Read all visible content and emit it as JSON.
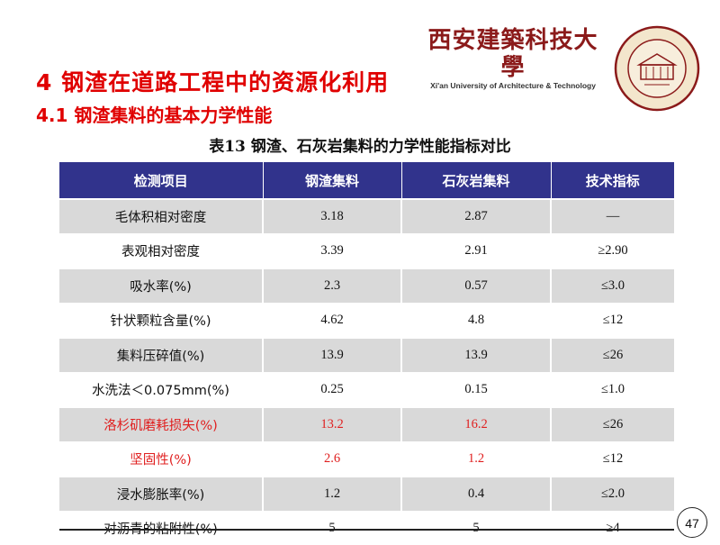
{
  "header": {
    "university_cn": "西安建築科技大學",
    "university_en": "Xi'an University of Architecture & Technology"
  },
  "title": "4  钢渣在道路工程中的资源化利用",
  "subtitle": "4.1 钢渣集料的基本力学性能",
  "caption": "表13  钢渣、石灰岩集料的力学性能指标对比",
  "table": {
    "headers": [
      "检测项目",
      "钢渣集料",
      "石灰岩集料",
      "技术指标"
    ],
    "rows": [
      {
        "cells": [
          "毛体积相对密度",
          "3.18",
          "2.87",
          "—"
        ],
        "highlight": false
      },
      {
        "cells": [
          "表观相对密度",
          "3.39",
          "2.91",
          "≥2.90"
        ],
        "highlight": false
      },
      {
        "cells": [
          "吸水率(%)",
          "2.3",
          "0.57",
          "≤3.0"
        ],
        "highlight": false
      },
      {
        "cells": [
          "针状颗粒含量(%)",
          "4.62",
          "4.8",
          "≤12"
        ],
        "highlight": false
      },
      {
        "cells": [
          "集料压碎值(%)",
          "13.9",
          "13.9",
          "≤26"
        ],
        "highlight": false
      },
      {
        "cells": [
          "水洗法＜0.075mm(%)",
          "0.25",
          "0.15",
          "≤1.0"
        ],
        "highlight": false
      },
      {
        "cells": [
          "洛杉矶磨耗损失(%)",
          "13.2",
          "16.2",
          "≤26"
        ],
        "highlight": true
      },
      {
        "cells": [
          "坚固性(%)",
          "2.6",
          "1.2",
          "≤12"
        ],
        "highlight": true
      },
      {
        "cells": [
          "浸水膨胀率(%)",
          "1.2",
          "0.4",
          "≤2.0"
        ],
        "highlight": false
      },
      {
        "cells": [
          "对沥青的粘附性(%)",
          "5",
          "5",
          "≥4"
        ],
        "highlight": false
      }
    ]
  },
  "page_number": "47",
  "colors": {
    "title_red": "#e00000",
    "header_blue": "#31338c",
    "highlight_red": "#e02020",
    "stripe_gray": "#d9d9d9"
  }
}
